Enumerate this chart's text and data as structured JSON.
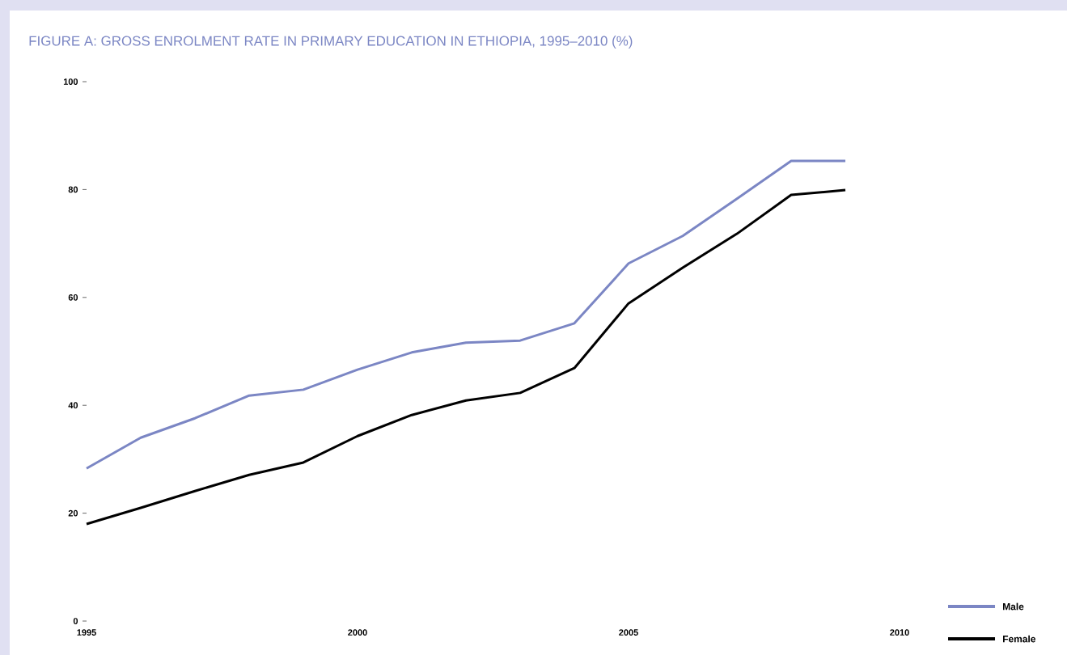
{
  "chart_data": {
    "type": "line",
    "title": "FIGURE A: GROSS ENROLMENT RATE IN PRIMARY EDUCATION IN ETHIOPIA, 1995–2010 (%)",
    "x": [
      1995,
      1996,
      1997,
      1998,
      1999,
      2000,
      2001,
      2002,
      2003,
      2004,
      2005,
      2006,
      2007,
      2008,
      2009
    ],
    "xlim": [
      1995,
      2010
    ],
    "xticks": [
      1995,
      2000,
      2005,
      2010
    ],
    "ylim": [
      0,
      100
    ],
    "yticks": [
      0,
      20,
      40,
      60,
      80,
      100
    ],
    "legend": "bottom right",
    "series": [
      {
        "name": "Male",
        "color": "#7b86c4",
        "values": [
          28.3,
          34.0,
          37.6,
          41.8,
          42.9,
          46.6,
          49.8,
          51.6,
          52.0,
          55.2,
          66.3,
          71.4,
          78.3,
          85.3,
          85.3
        ]
      },
      {
        "name": "Female",
        "color": "#000000",
        "values": [
          18.0,
          21.0,
          24.1,
          27.1,
          29.4,
          34.3,
          38.2,
          40.9,
          42.3,
          46.9,
          58.9,
          65.5,
          71.8,
          79.0,
          79.9
        ]
      }
    ]
  }
}
